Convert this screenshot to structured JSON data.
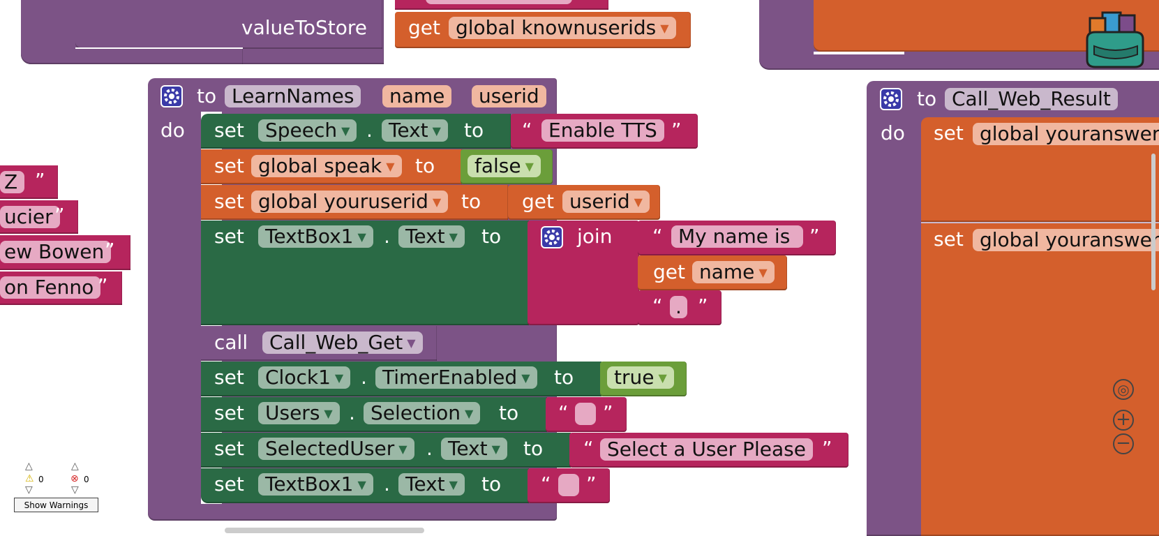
{
  "top_left": {
    "value_to_store_label": "valueToStore",
    "get_label": "get",
    "get_var": "global knownuserids"
  },
  "left_strings": [
    "Z",
    "ucier",
    "ew Bowen",
    "on Fenno"
  ],
  "learn_names": {
    "to_label": "to",
    "proc_name": "LearnNames",
    "params": [
      "name",
      "userid"
    ],
    "do_label": "do",
    "rows": {
      "r1": {
        "set": "set",
        "comp": "Speech",
        "prop": "Text",
        "to": "to",
        "text": "Enable TTS"
      },
      "r2": {
        "set": "set",
        "var": "global speak",
        "to": "to",
        "bool": "false"
      },
      "r3": {
        "set": "set",
        "var": "global youruserid",
        "to": "to",
        "get": "get",
        "get_var": "userid"
      },
      "r4": {
        "set": "set",
        "comp": "TextBox1",
        "prop": "Text",
        "to": "to",
        "join": "join",
        "t1": "My name is ",
        "get": "get",
        "get_var": "name",
        "t2": "."
      },
      "r5": {
        "call": "call",
        "proc": "Call_Web_Get"
      },
      "r6": {
        "set": "set",
        "comp": "Clock1",
        "prop": "TimerEnabled",
        "to": "to",
        "bool": "true"
      },
      "r7": {
        "set": "set",
        "comp": "Users",
        "prop": "Selection",
        "to": "to",
        "text": ""
      },
      "r8": {
        "set": "set",
        "comp": "SelectedUser",
        "prop": "Text",
        "to": "to",
        "text": "Select a User Please"
      },
      "r9": {
        "set": "set",
        "comp": "TextBox1",
        "prop": "Text",
        "to": "to",
        "text": ""
      }
    }
  },
  "call_web_result": {
    "to_label": "to",
    "proc_name": "Call_Web_Result",
    "do_label": "do",
    "set1": "set",
    "var1": "global youranswer",
    "set2": "set",
    "var2": "global youranswer"
  },
  "warnings": {
    "warn_count": "0",
    "error_count": "0",
    "button": "Show Warnings"
  },
  "dot": ".",
  "open_quote": "“",
  "close_quote": "”",
  "colors": {
    "procedure": "#7c5386",
    "setter": "#2a6a45",
    "variable": "#d45f2c",
    "text": "#b6255d",
    "logic": "#6b9e3a",
    "gear": "#3a3aa8"
  },
  "icons": {
    "gear": "gear-icon",
    "backpack": "backpack-icon",
    "recenter": "target-icon",
    "zoom_in": "plus-icon",
    "zoom_out": "minus-icon",
    "warning": "warning-icon",
    "error": "error-icon"
  }
}
